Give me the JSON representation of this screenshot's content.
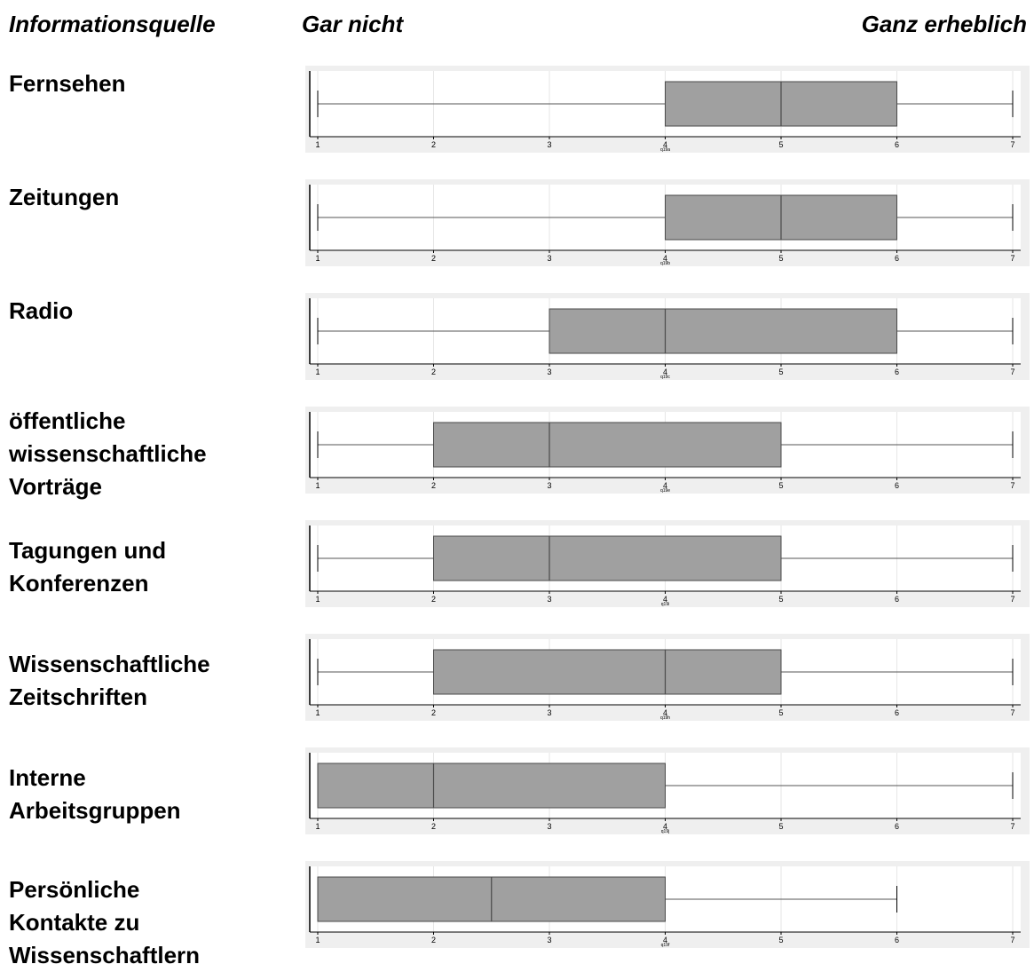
{
  "header": {
    "source_label": "Informationsquelle",
    "low_label": "Gar nicht",
    "high_label": "Ganz erheblich"
  },
  "rows": [
    {
      "lines": [
        "Fernsehen"
      ]
    },
    {
      "lines": [
        "Zeitungen"
      ]
    },
    {
      "lines": [
        "Radio"
      ]
    },
    {
      "lines": [
        "öffentliche",
        "wissenschaftliche",
        "Vorträge"
      ]
    },
    {
      "lines": [
        "Tagungen und",
        "Konferenzen"
      ]
    },
    {
      "lines": [
        "Wissenschaftliche",
        "Zeitschriften"
      ]
    },
    {
      "lines": [
        "Interne",
        "Arbeitsgruppen"
      ]
    },
    {
      "lines": [
        "Persönliche",
        "Kontakte zu",
        "Wissenschaftlern"
      ]
    }
  ],
  "chart_data": {
    "type": "boxplot",
    "orientation": "horizontal",
    "xlim": [
      1,
      7
    ],
    "ticks": [
      "1",
      "2",
      "3",
      "4",
      "5",
      "6",
      "7"
    ],
    "grid": true,
    "series": [
      {
        "name": "Fernsehen",
        "var": "q19a",
        "min": 1,
        "q1": 4,
        "median": 5,
        "q3": 6,
        "max": 7
      },
      {
        "name": "Zeitungen",
        "var": "q19b",
        "min": 1,
        "q1": 4,
        "median": 5,
        "q3": 6,
        "max": 7
      },
      {
        "name": "Radio",
        "var": "q19c",
        "min": 1,
        "q1": 3,
        "median": 4,
        "q3": 6,
        "max": 7
      },
      {
        "name": "öffentliche wissenschaftliche Vorträge",
        "var": "q19e",
        "min": 1,
        "q1": 2,
        "median": 3,
        "q3": 5,
        "max": 7
      },
      {
        "name": "Tagungen und Konferenzen",
        "var": "q19i",
        "min": 1,
        "q1": 2,
        "median": 3,
        "q3": 5,
        "max": 7
      },
      {
        "name": "Wissenschaftliche Zeitschriften",
        "var": "q19h",
        "min": 1,
        "q1": 2,
        "median": 4,
        "q3": 5,
        "max": 7
      },
      {
        "name": "Interne Arbeitsgruppen",
        "var": "q19j",
        "min": 1,
        "q1": 1,
        "median": 2,
        "q3": 4,
        "max": 7
      },
      {
        "name": "Persönliche Kontakte zu Wissenschaftlern",
        "var": "q19f",
        "min": 1,
        "q1": 1,
        "median": 2.5,
        "q3": 4,
        "max": 6
      }
    ]
  },
  "colors": {
    "panel_bg": "#efefef",
    "plot_bg": "#ffffff",
    "box_fill": "#a0a0a0",
    "box_stroke": "#4a4a4a",
    "grid": "#e6e6e6",
    "whisker": "#555555"
  }
}
